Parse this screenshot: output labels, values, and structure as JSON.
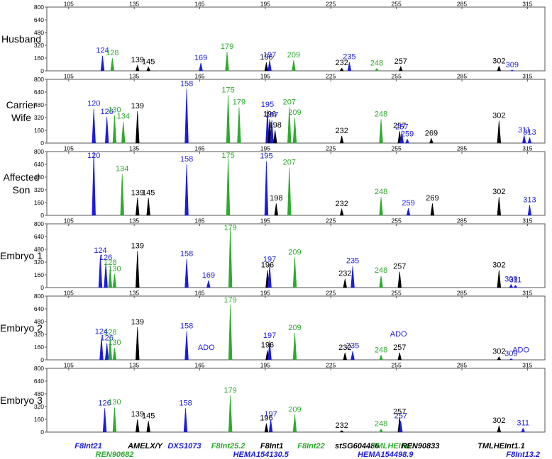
{
  "colors": {
    "blue": "#1c1cdc",
    "green": "#2eaa2e",
    "black": "#000000",
    "axis": "#555555",
    "grid": "#bbbbbb"
  },
  "chart_data": {
    "type": "line",
    "title": "",
    "xlabel": "",
    "ylabel": "",
    "xlim": [
      95,
      323
    ],
    "x_ticks": [
      105,
      135,
      165,
      195,
      225,
      255,
      285,
      315
    ],
    "ylim": [
      0,
      800
    ],
    "y_ticks": [
      0,
      160,
      320,
      480,
      640,
      800
    ],
    "panels": [
      {
        "name": "Husband",
        "lines": [
          "Husband"
        ],
        "peaks": [
          {
            "x": 120.5,
            "h": 190,
            "c": "blue",
            "label": "124"
          },
          {
            "x": 125,
            "h": 160,
            "c": "green",
            "label": "128"
          },
          {
            "x": 136.5,
            "h": 70,
            "c": "black",
            "label": "139"
          },
          {
            "x": 141.5,
            "h": 50,
            "c": "black",
            "label": "145"
          },
          {
            "x": 165.5,
            "h": 100,
            "c": "blue",
            "label": "169"
          },
          {
            "x": 177.5,
            "h": 240,
            "c": "green",
            "label": "179"
          },
          {
            "x": 195.5,
            "h": 105,
            "c": "black",
            "label": "196"
          },
          {
            "x": 197,
            "h": 135,
            "c": "blue",
            "label": "197"
          },
          {
            "x": 208,
            "h": 135,
            "c": "green",
            "label": "209"
          },
          {
            "x": 230,
            "h": 35,
            "c": "black",
            "label": "232"
          },
          {
            "x": 233.5,
            "h": 110,
            "c": "blue",
            "label": "235"
          },
          {
            "x": 246,
            "h": 30,
            "c": "green",
            "label": "248"
          },
          {
            "x": 257,
            "h": 55,
            "c": "black",
            "label": "257"
          },
          {
            "x": 302,
            "h": 60,
            "c": "black",
            "label": "302"
          },
          {
            "x": 308,
            "h": 10,
            "c": "blue",
            "label": "309"
          }
        ]
      },
      {
        "name": "Carrier Wife",
        "lines": [
          "Carrier",
          "Wife"
        ],
        "peaks": [
          {
            "x": 116.5,
            "h": 430,
            "c": "blue",
            "label": "120"
          },
          {
            "x": 122.5,
            "h": 330,
            "c": "blue",
            "label": "126"
          },
          {
            "x": 126,
            "h": 350,
            "c": "green",
            "label": "130"
          },
          {
            "x": 130,
            "h": 270,
            "c": "green",
            "label": "134"
          },
          {
            "x": 136.5,
            "h": 400,
            "c": "black",
            "label": "139"
          },
          {
            "x": 159,
            "h": 680,
            "c": "blue",
            "label": "158"
          },
          {
            "x": 178,
            "h": 600,
            "c": "green",
            "label": "175"
          },
          {
            "x": 183,
            "h": 450,
            "c": "green",
            "label": "179"
          },
          {
            "x": 196,
            "h": 420,
            "c": "blue",
            "label": "195"
          },
          {
            "x": 197,
            "h": 300,
            "c": "black",
            "label": "196"
          },
          {
            "x": 198,
            "h": 290,
            "c": "blue",
            "label": "197"
          },
          {
            "x": 199.5,
            "h": 160,
            "c": "black",
            "label": "198"
          },
          {
            "x": 206,
            "h": 450,
            "c": "green",
            "label": "207"
          },
          {
            "x": 208.5,
            "h": 320,
            "c": "green",
            "label": "209"
          },
          {
            "x": 230,
            "h": 90,
            "c": "black",
            "label": "232"
          },
          {
            "x": 248,
            "h": 300,
            "c": "green",
            "label": "248"
          },
          {
            "x": 256.5,
            "h": 150,
            "c": "black",
            "label": "257"
          },
          {
            "x": 257.5,
            "h": 140,
            "c": "blue",
            "label": "257"
          },
          {
            "x": 260,
            "h": 50,
            "c": "blue",
            "label": "259"
          },
          {
            "x": 271,
            "h": 60,
            "c": "black",
            "label": "269"
          },
          {
            "x": 302,
            "h": 280,
            "c": "black",
            "label": "302"
          },
          {
            "x": 313.5,
            "h": 100,
            "c": "blue",
            "label": "311"
          },
          {
            "x": 316,
            "h": 70,
            "c": "blue",
            "label": "313"
          }
        ]
      },
      {
        "name": "Affected Son",
        "lines": [
          "Affected",
          "Son"
        ],
        "peaks": [
          {
            "x": 116.5,
            "h": 800,
            "c": "blue",
            "label": "120"
          },
          {
            "x": 129.5,
            "h": 520,
            "c": "green",
            "label": "134"
          },
          {
            "x": 136.5,
            "h": 220,
            "c": "black",
            "label": "139"
          },
          {
            "x": 141.5,
            "h": 220,
            "c": "black",
            "label": "145"
          },
          {
            "x": 159,
            "h": 640,
            "c": "blue",
            "label": "158"
          },
          {
            "x": 178,
            "h": 720,
            "c": "green",
            "label": "175"
          },
          {
            "x": 195.5,
            "h": 680,
            "c": "blue",
            "label": "195"
          },
          {
            "x": 200,
            "h": 150,
            "c": "black",
            "label": "198"
          },
          {
            "x": 206,
            "h": 600,
            "c": "green",
            "label": "207"
          },
          {
            "x": 230,
            "h": 80,
            "c": "black",
            "label": "232"
          },
          {
            "x": 248,
            "h": 230,
            "c": "green",
            "label": "248"
          },
          {
            "x": 260.5,
            "h": 90,
            "c": "blue",
            "label": "259"
          },
          {
            "x": 271.5,
            "h": 150,
            "c": "black",
            "label": "269"
          },
          {
            "x": 302,
            "h": 230,
            "c": "black",
            "label": "302"
          },
          {
            "x": 316,
            "h": 130,
            "c": "blue",
            "label": "313"
          }
        ]
      },
      {
        "name": "Embryo 1",
        "lines": [
          "Embryo 1"
        ],
        "peaks": [
          {
            "x": 119.5,
            "h": 400,
            "c": "blue",
            "label": "124"
          },
          {
            "x": 122,
            "h": 310,
            "c": "blue",
            "label": "126"
          },
          {
            "x": 124,
            "h": 250,
            "c": "green",
            "label": "128"
          },
          {
            "x": 126,
            "h": 170,
            "c": "green",
            "label": "130"
          },
          {
            "x": 136.5,
            "h": 460,
            "c": "black",
            "label": "139"
          },
          {
            "x": 159,
            "h": 360,
            "c": "blue",
            "label": "158"
          },
          {
            "x": 169,
            "h": 90,
            "c": "blue",
            "label": "169"
          },
          {
            "x": 179,
            "h": 750,
            "c": "green",
            "label": "179"
          },
          {
            "x": 196,
            "h": 220,
            "c": "black",
            "label": "196"
          },
          {
            "x": 197,
            "h": 290,
            "c": "blue",
            "label": "197"
          },
          {
            "x": 208.5,
            "h": 380,
            "c": "green",
            "label": "209"
          },
          {
            "x": 231.5,
            "h": 110,
            "c": "black",
            "label": "232"
          },
          {
            "x": 235,
            "h": 270,
            "c": "blue",
            "label": "235"
          },
          {
            "x": 248,
            "h": 150,
            "c": "green",
            "label": "248"
          },
          {
            "x": 256.5,
            "h": 200,
            "c": "black",
            "label": "257"
          },
          {
            "x": 302,
            "h": 220,
            "c": "black",
            "label": "302"
          },
          {
            "x": 307.5,
            "h": 40,
            "c": "blue",
            "label": "309"
          },
          {
            "x": 309.5,
            "h": 30,
            "c": "blue",
            "label": "311"
          }
        ]
      },
      {
        "name": "Embryo 2",
        "lines": [
          "Embryo 2"
        ],
        "peaks": [
          {
            "x": 120,
            "h": 290,
            "c": "blue",
            "label": "124"
          },
          {
            "x": 122.5,
            "h": 210,
            "c": "blue",
            "label": "126"
          },
          {
            "x": 124,
            "h": 280,
            "c": "green",
            "label": "128"
          },
          {
            "x": 126,
            "h": 150,
            "c": "green",
            "label": "130"
          },
          {
            "x": 136.5,
            "h": 410,
            "c": "black",
            "label": "139"
          },
          {
            "x": 159,
            "h": 360,
            "c": "blue",
            "label": "158"
          },
          {
            "x": 179,
            "h": 690,
            "c": "green",
            "label": "179"
          },
          {
            "x": 196,
            "h": 120,
            "c": "black",
            "label": "196"
          },
          {
            "x": 197,
            "h": 240,
            "c": "blue",
            "label": "197"
          },
          {
            "x": 208.5,
            "h": 340,
            "c": "green",
            "label": "209"
          },
          {
            "x": 231.5,
            "h": 90,
            "c": "black",
            "label": "232"
          },
          {
            "x": 235,
            "h": 110,
            "c": "blue",
            "label": "235"
          },
          {
            "x": 248,
            "h": 60,
            "c": "green",
            "label": "248"
          },
          {
            "x": 256.5,
            "h": 90,
            "c": "black",
            "label": "257"
          },
          {
            "x": 302,
            "h": 40,
            "c": "black",
            "label": "302"
          },
          {
            "x": 307.5,
            "h": 15,
            "c": "blue",
            "label": "309"
          }
        ],
        "notes": [
          {
            "x": 168,
            "text": "ADO",
            "c": "blue",
            "h": 90
          },
          {
            "x": 256,
            "text": "ADO",
            "c": "blue",
            "h": 260
          },
          {
            "x": 312,
            "text": "ADO",
            "c": "blue",
            "h": 60
          }
        ]
      },
      {
        "name": "Embryo 3",
        "lines": [
          "Embryo 3"
        ],
        "peaks": [
          {
            "x": 121.5,
            "h": 300,
            "c": "blue",
            "label": "126"
          },
          {
            "x": 126,
            "h": 310,
            "c": "green",
            "label": "130"
          },
          {
            "x": 136.5,
            "h": 160,
            "c": "black",
            "label": "139"
          },
          {
            "x": 141.5,
            "h": 140,
            "c": "black",
            "label": "145"
          },
          {
            "x": 158.5,
            "h": 300,
            "c": "blue",
            "label": "158"
          },
          {
            "x": 179,
            "h": 460,
            "c": "green",
            "label": "179"
          },
          {
            "x": 195.5,
            "h": 110,
            "c": "black",
            "label": "196"
          },
          {
            "x": 197.5,
            "h": 160,
            "c": "blue",
            "label": "197"
          },
          {
            "x": 208.5,
            "h": 220,
            "c": "green",
            "label": "209"
          },
          {
            "x": 230,
            "h": 20,
            "c": "black",
            "label": "232"
          },
          {
            "x": 248,
            "h": 40,
            "c": "green",
            "label": "248"
          },
          {
            "x": 256.5,
            "h": 190,
            "c": "black",
            "label": "257"
          },
          {
            "x": 257,
            "h": 140,
            "c": "blue",
            "label": "257"
          },
          {
            "x": 302,
            "h": 80,
            "c": "black",
            "label": "302"
          },
          {
            "x": 313,
            "h": 50,
            "c": "blue",
            "label": "311"
          }
        ]
      }
    ],
    "markers": [
      {
        "x": 114,
        "row": 1,
        "text": "F8Int21",
        "c": "blue"
      },
      {
        "x": 126,
        "row": 2,
        "text": "REN90682",
        "c": "green"
      },
      {
        "x": 140,
        "row": 1,
        "text": "AMELX/Y",
        "c": "black"
      },
      {
        "x": 158,
        "row": 1,
        "text": "DXS1073",
        "c": "blue"
      },
      {
        "x": 178,
        "row": 1,
        "text": "F8Int25.2",
        "c": "green"
      },
      {
        "x": 198,
        "row": 1,
        "text": "F8Int1",
        "c": "black"
      },
      {
        "x": 193,
        "row": 2,
        "text": "HEMA154130.5",
        "c": "blue"
      },
      {
        "x": 216,
        "row": 1,
        "text": "F8Int22",
        "c": "green"
      },
      {
        "x": 237,
        "row": 1,
        "text": "stSG604486",
        "c": "black"
      },
      {
        "x": 253,
        "row": 1,
        "text": "TMLHEInt2",
        "c": "green"
      },
      {
        "x": 250,
        "row": 2,
        "text": "HEMA154498.9",
        "c": "blue"
      },
      {
        "x": 266,
        "row": 1,
        "text": "REN90833",
        "c": "black"
      },
      {
        "x": 303,
        "row": 1,
        "text": "TMLHEInt1.1",
        "c": "black"
      },
      {
        "x": 313,
        "row": 2,
        "text": "F8Int13.2",
        "c": "blue"
      }
    ]
  }
}
